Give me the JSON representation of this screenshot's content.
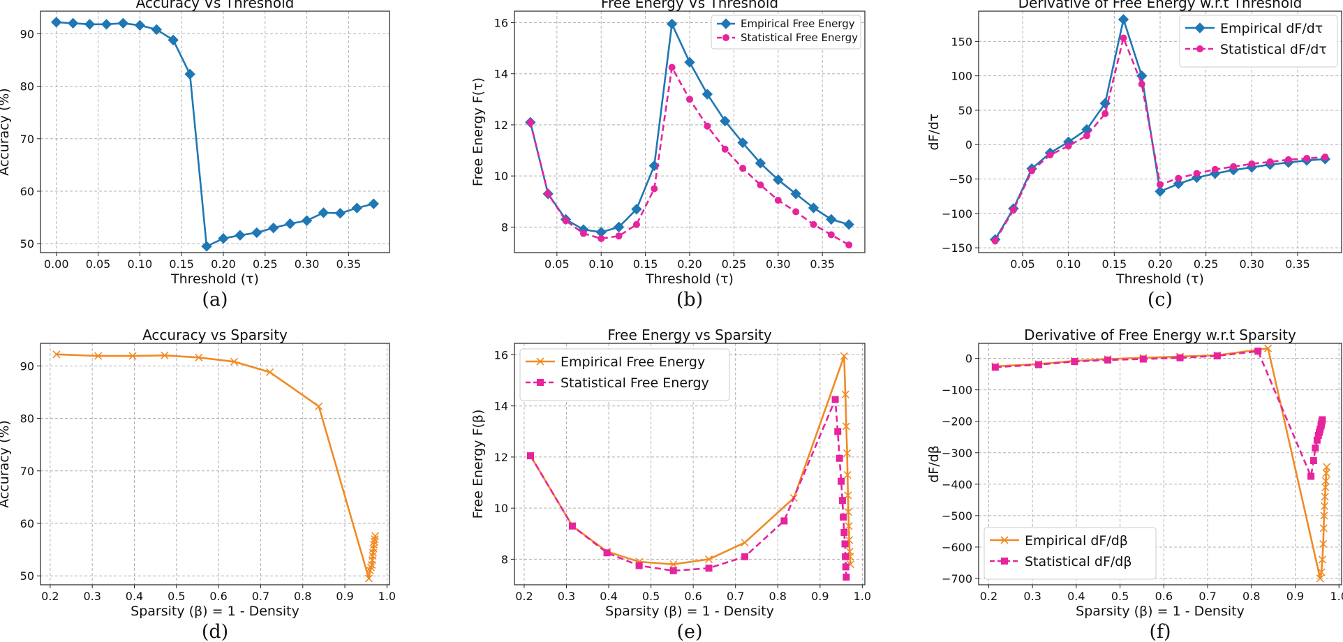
{
  "colors": {
    "blue": "#1f77b4",
    "pink": "#e6249c",
    "orange": "#f08a24"
  },
  "chart_data": [
    {
      "id": "a",
      "type": "line",
      "title": "Accuracy Vs Threshold",
      "xlabel": "Threshold (τ)",
      "ylabel": "Accuracy (%)",
      "caption": "(a)",
      "xlim": [
        -0.019,
        0.399
      ],
      "ylim": [
        48.3,
        94.3
      ],
      "xticks": [
        0,
        0.05,
        0.1,
        0.15,
        0.2,
        0.25,
        0.3,
        0.35
      ],
      "xticklabels": [
        "0.00",
        "0.05",
        "0.10",
        "0.15",
        "0.20",
        "0.25",
        "0.30",
        "0.35"
      ],
      "yticks": [
        50,
        60,
        70,
        80,
        90
      ],
      "yticklabels": [
        "50",
        "60",
        "70",
        "80",
        "90"
      ],
      "series": [
        {
          "name": "Accuracy",
          "color": "#1f77b4",
          "marker": "diamond",
          "dash": false,
          "x": [
            0,
            0.02,
            0.04,
            0.06,
            0.08,
            0.1,
            0.12,
            0.14,
            0.16,
            0.18,
            0.2,
            0.22,
            0.24,
            0.26,
            0.28,
            0.3,
            0.32,
            0.34,
            0.36,
            0.38
          ],
          "y": [
            92.2,
            92.0,
            91.8,
            91.8,
            92.0,
            91.6,
            90.8,
            88.8,
            82.3,
            49.5,
            51.0,
            51.6,
            52.1,
            53.0,
            53.8,
            54.4,
            55.9,
            55.8,
            56.8,
            57.6
          ]
        }
      ]
    },
    {
      "id": "b",
      "type": "line",
      "title": "Free Energy Vs Threshold",
      "xlabel": "Threshold (τ)",
      "ylabel": "Free Energy F(τ)",
      "caption": "(b)",
      "xlim": [
        0.002,
        0.398
      ],
      "ylim": [
        7.0,
        16.45
      ],
      "xticks": [
        0.05,
        0.1,
        0.15,
        0.2,
        0.25,
        0.3,
        0.35
      ],
      "xticklabels": [
        "0.05",
        "0.10",
        "0.15",
        "0.20",
        "0.25",
        "0.30",
        "0.35"
      ],
      "yticks": [
        8,
        10,
        12,
        14,
        16
      ],
      "yticklabels": [
        "8",
        "10",
        "12",
        "14",
        "16"
      ],
      "legend": {
        "position": "top-right",
        "size": "small"
      },
      "series": [
        {
          "name": "Empirical Free Energy",
          "color": "#1f77b4",
          "marker": "diamond",
          "dash": false,
          "x": [
            0.02,
            0.04,
            0.06,
            0.08,
            0.1,
            0.12,
            0.14,
            0.16,
            0.18,
            0.2,
            0.22,
            0.24,
            0.26,
            0.28,
            0.3,
            0.32,
            0.34,
            0.36,
            0.38
          ],
          "y": [
            12.1,
            9.3,
            8.3,
            7.9,
            7.8,
            8.0,
            8.7,
            10.4,
            15.95,
            14.45,
            13.2,
            12.15,
            11.3,
            10.5,
            9.85,
            9.3,
            8.75,
            8.3,
            8.1
          ]
        },
        {
          "name": "Statistical Free Energy",
          "color": "#e6249c",
          "marker": "circle",
          "dash": true,
          "x": [
            0.02,
            0.04,
            0.06,
            0.08,
            0.1,
            0.12,
            0.14,
            0.16,
            0.18,
            0.2,
            0.22,
            0.24,
            0.26,
            0.28,
            0.3,
            0.32,
            0.34,
            0.36,
            0.38
          ],
          "y": [
            12.1,
            9.3,
            8.25,
            7.75,
            7.55,
            7.65,
            8.1,
            9.5,
            14.25,
            13.0,
            11.95,
            11.05,
            10.3,
            9.65,
            9.05,
            8.6,
            8.1,
            7.7,
            7.3
          ]
        }
      ]
    },
    {
      "id": "c",
      "type": "line",
      "title": "Derivative of Free Energy w.r.t Threshold",
      "xlabel": "Threshold (τ)",
      "ylabel": "dF/dτ",
      "caption": "(c)",
      "xlim": [
        0.002,
        0.398
      ],
      "ylim": [
        -157,
        194
      ],
      "xticks": [
        0.05,
        0.1,
        0.15,
        0.2,
        0.25,
        0.3,
        0.35
      ],
      "xticklabels": [
        "0.05",
        "0.10",
        "0.15",
        "0.20",
        "0.25",
        "0.30",
        "0.35"
      ],
      "yticks": [
        -150,
        -100,
        -50,
        0,
        50,
        100,
        150
      ],
      "yticklabels": [
        "−150",
        "−100",
        "−50",
        "0",
        "50",
        "100",
        "150"
      ],
      "legend": {
        "position": "top-right",
        "size": "large"
      },
      "series": [
        {
          "name": "Empirical dF/dτ",
          "color": "#1f77b4",
          "marker": "diamond",
          "dash": false,
          "x": [
            0.02,
            0.04,
            0.06,
            0.08,
            0.1,
            0.12,
            0.14,
            0.16,
            0.18,
            0.2,
            0.22,
            0.24,
            0.26,
            0.28,
            0.3,
            0.32,
            0.34,
            0.36,
            0.38
          ],
          "y": [
            -138,
            -93,
            -35,
            -12,
            4,
            22,
            60,
            182,
            100,
            -68,
            -57,
            -48,
            -42,
            -37,
            -33,
            -29,
            -26,
            -23,
            -21
          ]
        },
        {
          "name": "Statistical dF/dτ",
          "color": "#e6249c",
          "marker": "circle",
          "dash": true,
          "x": [
            0.02,
            0.04,
            0.06,
            0.08,
            0.1,
            0.12,
            0.14,
            0.16,
            0.18,
            0.2,
            0.22,
            0.24,
            0.26,
            0.28,
            0.3,
            0.32,
            0.34,
            0.36,
            0.38
          ],
          "y": [
            -140,
            -95,
            -38,
            -15,
            -2,
            13,
            45,
            155,
            88,
            -58,
            -49,
            -42,
            -36,
            -32,
            -28,
            -25,
            -22,
            -20,
            -18
          ]
        }
      ]
    },
    {
      "id": "d",
      "type": "line",
      "title": "Accuracy vs Sparsity",
      "xlabel": "Sparsity (β) = 1 - Density",
      "ylabel": "Accuracy (%)",
      "caption": "(d)",
      "xlim": [
        0.177,
        1.006
      ],
      "ylim": [
        48.3,
        94.3
      ],
      "xticks": [
        0.2,
        0.3,
        0.4,
        0.5,
        0.6,
        0.7,
        0.8,
        0.9,
        1.0
      ],
      "xticklabels": [
        "0.2",
        "0.3",
        "0.4",
        "0.5",
        "0.6",
        "0.7",
        "0.8",
        "0.9",
        "1.0"
      ],
      "yticks": [
        50,
        60,
        70,
        80,
        90
      ],
      "yticklabels": [
        "50",
        "60",
        "70",
        "80",
        "90"
      ],
      "series": [
        {
          "name": "Accuracy",
          "color": "#f08a24",
          "marker": "x",
          "dash": false,
          "x": [
            0.215,
            0.314,
            0.396,
            0.472,
            0.553,
            0.637,
            0.722,
            0.838,
            0.957,
            0.96,
            0.962,
            0.964,
            0.965,
            0.966,
            0.967,
            0.968,
            0.969,
            0.97,
            0.971,
            0.972
          ],
          "y": [
            92.2,
            91.9,
            91.9,
            92.0,
            91.6,
            90.8,
            88.8,
            82.3,
            49.5,
            51.0,
            51.6,
            52.1,
            53.0,
            53.8,
            54.4,
            55.2,
            55.9,
            56.5,
            57.0,
            57.6
          ]
        }
      ]
    },
    {
      "id": "e",
      "type": "line",
      "title": "Free Energy vs Sparsity",
      "xlabel": "Sparsity (β) = 1 - Density",
      "ylabel": "Free Energy F(β)",
      "caption": "(e)",
      "xlim": [
        0.177,
        1.006
      ],
      "ylim": [
        7.0,
        16.45
      ],
      "xticks": [
        0.2,
        0.3,
        0.4,
        0.5,
        0.6,
        0.7,
        0.8,
        0.9,
        1.0
      ],
      "xticklabels": [
        "0.2",
        "0.3",
        "0.4",
        "0.5",
        "0.6",
        "0.7",
        "0.8",
        "0.9",
        "1.0"
      ],
      "yticks": [
        8,
        10,
        12,
        14,
        16
      ],
      "yticklabels": [
        "8",
        "10",
        "12",
        "14",
        "16"
      ],
      "legend": {
        "position": "top-left",
        "size": "large"
      },
      "series": [
        {
          "name": "Empirical Free Energy",
          "color": "#f08a24",
          "marker": "x",
          "dash": false,
          "x": [
            0.215,
            0.314,
            0.396,
            0.472,
            0.553,
            0.637,
            0.722,
            0.838,
            0.957,
            0.96,
            0.962,
            0.964,
            0.965,
            0.966,
            0.967,
            0.968,
            0.969,
            0.97,
            0.971,
            0.972
          ],
          "y": [
            12.05,
            9.3,
            8.3,
            7.9,
            7.8,
            8.0,
            8.65,
            10.4,
            15.95,
            14.45,
            13.2,
            12.15,
            11.3,
            10.5,
            9.85,
            9.3,
            8.75,
            8.3,
            8.1,
            7.8
          ]
        },
        {
          "name": "Statistical Free Energy",
          "color": "#e6249c",
          "marker": "square",
          "dash": true,
          "x": [
            0.215,
            0.314,
            0.396,
            0.472,
            0.553,
            0.637,
            0.722,
            0.815,
            0.936,
            0.942,
            0.946,
            0.95,
            0.953,
            0.955,
            0.957,
            0.959,
            0.96,
            0.961,
            0.962
          ],
          "y": [
            12.05,
            9.3,
            8.25,
            7.75,
            7.55,
            7.65,
            8.1,
            9.5,
            14.25,
            13.0,
            11.95,
            11.05,
            10.3,
            9.65,
            9.05,
            8.6,
            8.1,
            7.7,
            7.3
          ]
        }
      ]
    },
    {
      "id": "f",
      "type": "line",
      "title": "Derivative of Free Energy w.r.t Sparsity",
      "xlabel": "Sparsity (β) = 1 - Density",
      "ylabel": "dF/dβ",
      "caption": "(f)",
      "xlim": [
        0.177,
        1.006
      ],
      "ylim": [
        -720,
        48
      ],
      "xticks": [
        0.2,
        0.3,
        0.4,
        0.5,
        0.6,
        0.7,
        0.8,
        0.9,
        1.0
      ],
      "xticklabels": [
        "0.2",
        "0.3",
        "0.4",
        "0.5",
        "0.6",
        "0.7",
        "0.8",
        "0.9",
        "1.0"
      ],
      "yticks": [
        -700,
        -600,
        -500,
        -400,
        -300,
        -200,
        -100,
        0
      ],
      "yticklabels": [
        "−700",
        "−600",
        "−500",
        "−400",
        "−300",
        "−200",
        "−100",
        "0"
      ],
      "legend": {
        "position": "bottom-left",
        "size": "large"
      },
      "series": [
        {
          "name": "Empirical dF/dβ",
          "color": "#f08a24",
          "marker": "x",
          "dash": false,
          "x": [
            0.215,
            0.314,
            0.396,
            0.472,
            0.553,
            0.637,
            0.722,
            0.838,
            0.957,
            0.96,
            0.962,
            0.964,
            0.965,
            0.966,
            0.967,
            0.968,
            0.969,
            0.97,
            0.971,
            0.972
          ],
          "y": [
            -25,
            -18,
            -8,
            -2,
            2,
            6,
            10,
            32,
            -700,
            -680,
            -640,
            -590,
            -540,
            -500,
            -470,
            -440,
            -410,
            -390,
            -365,
            -345
          ]
        },
        {
          "name": "Statistical dF/dβ",
          "color": "#e6249c",
          "marker": "square",
          "dash": true,
          "x": [
            0.215,
            0.314,
            0.396,
            0.472,
            0.553,
            0.637,
            0.722,
            0.815,
            0.936,
            0.942,
            0.946,
            0.95,
            0.953,
            0.955,
            0.957,
            0.959,
            0.96,
            0.961,
            0.962
          ],
          "y": [
            -28,
            -20,
            -10,
            -5,
            -2,
            2,
            8,
            23,
            -375,
            -325,
            -285,
            -260,
            -245,
            -235,
            -225,
            -215,
            -208,
            -200,
            -195
          ]
        }
      ]
    }
  ]
}
